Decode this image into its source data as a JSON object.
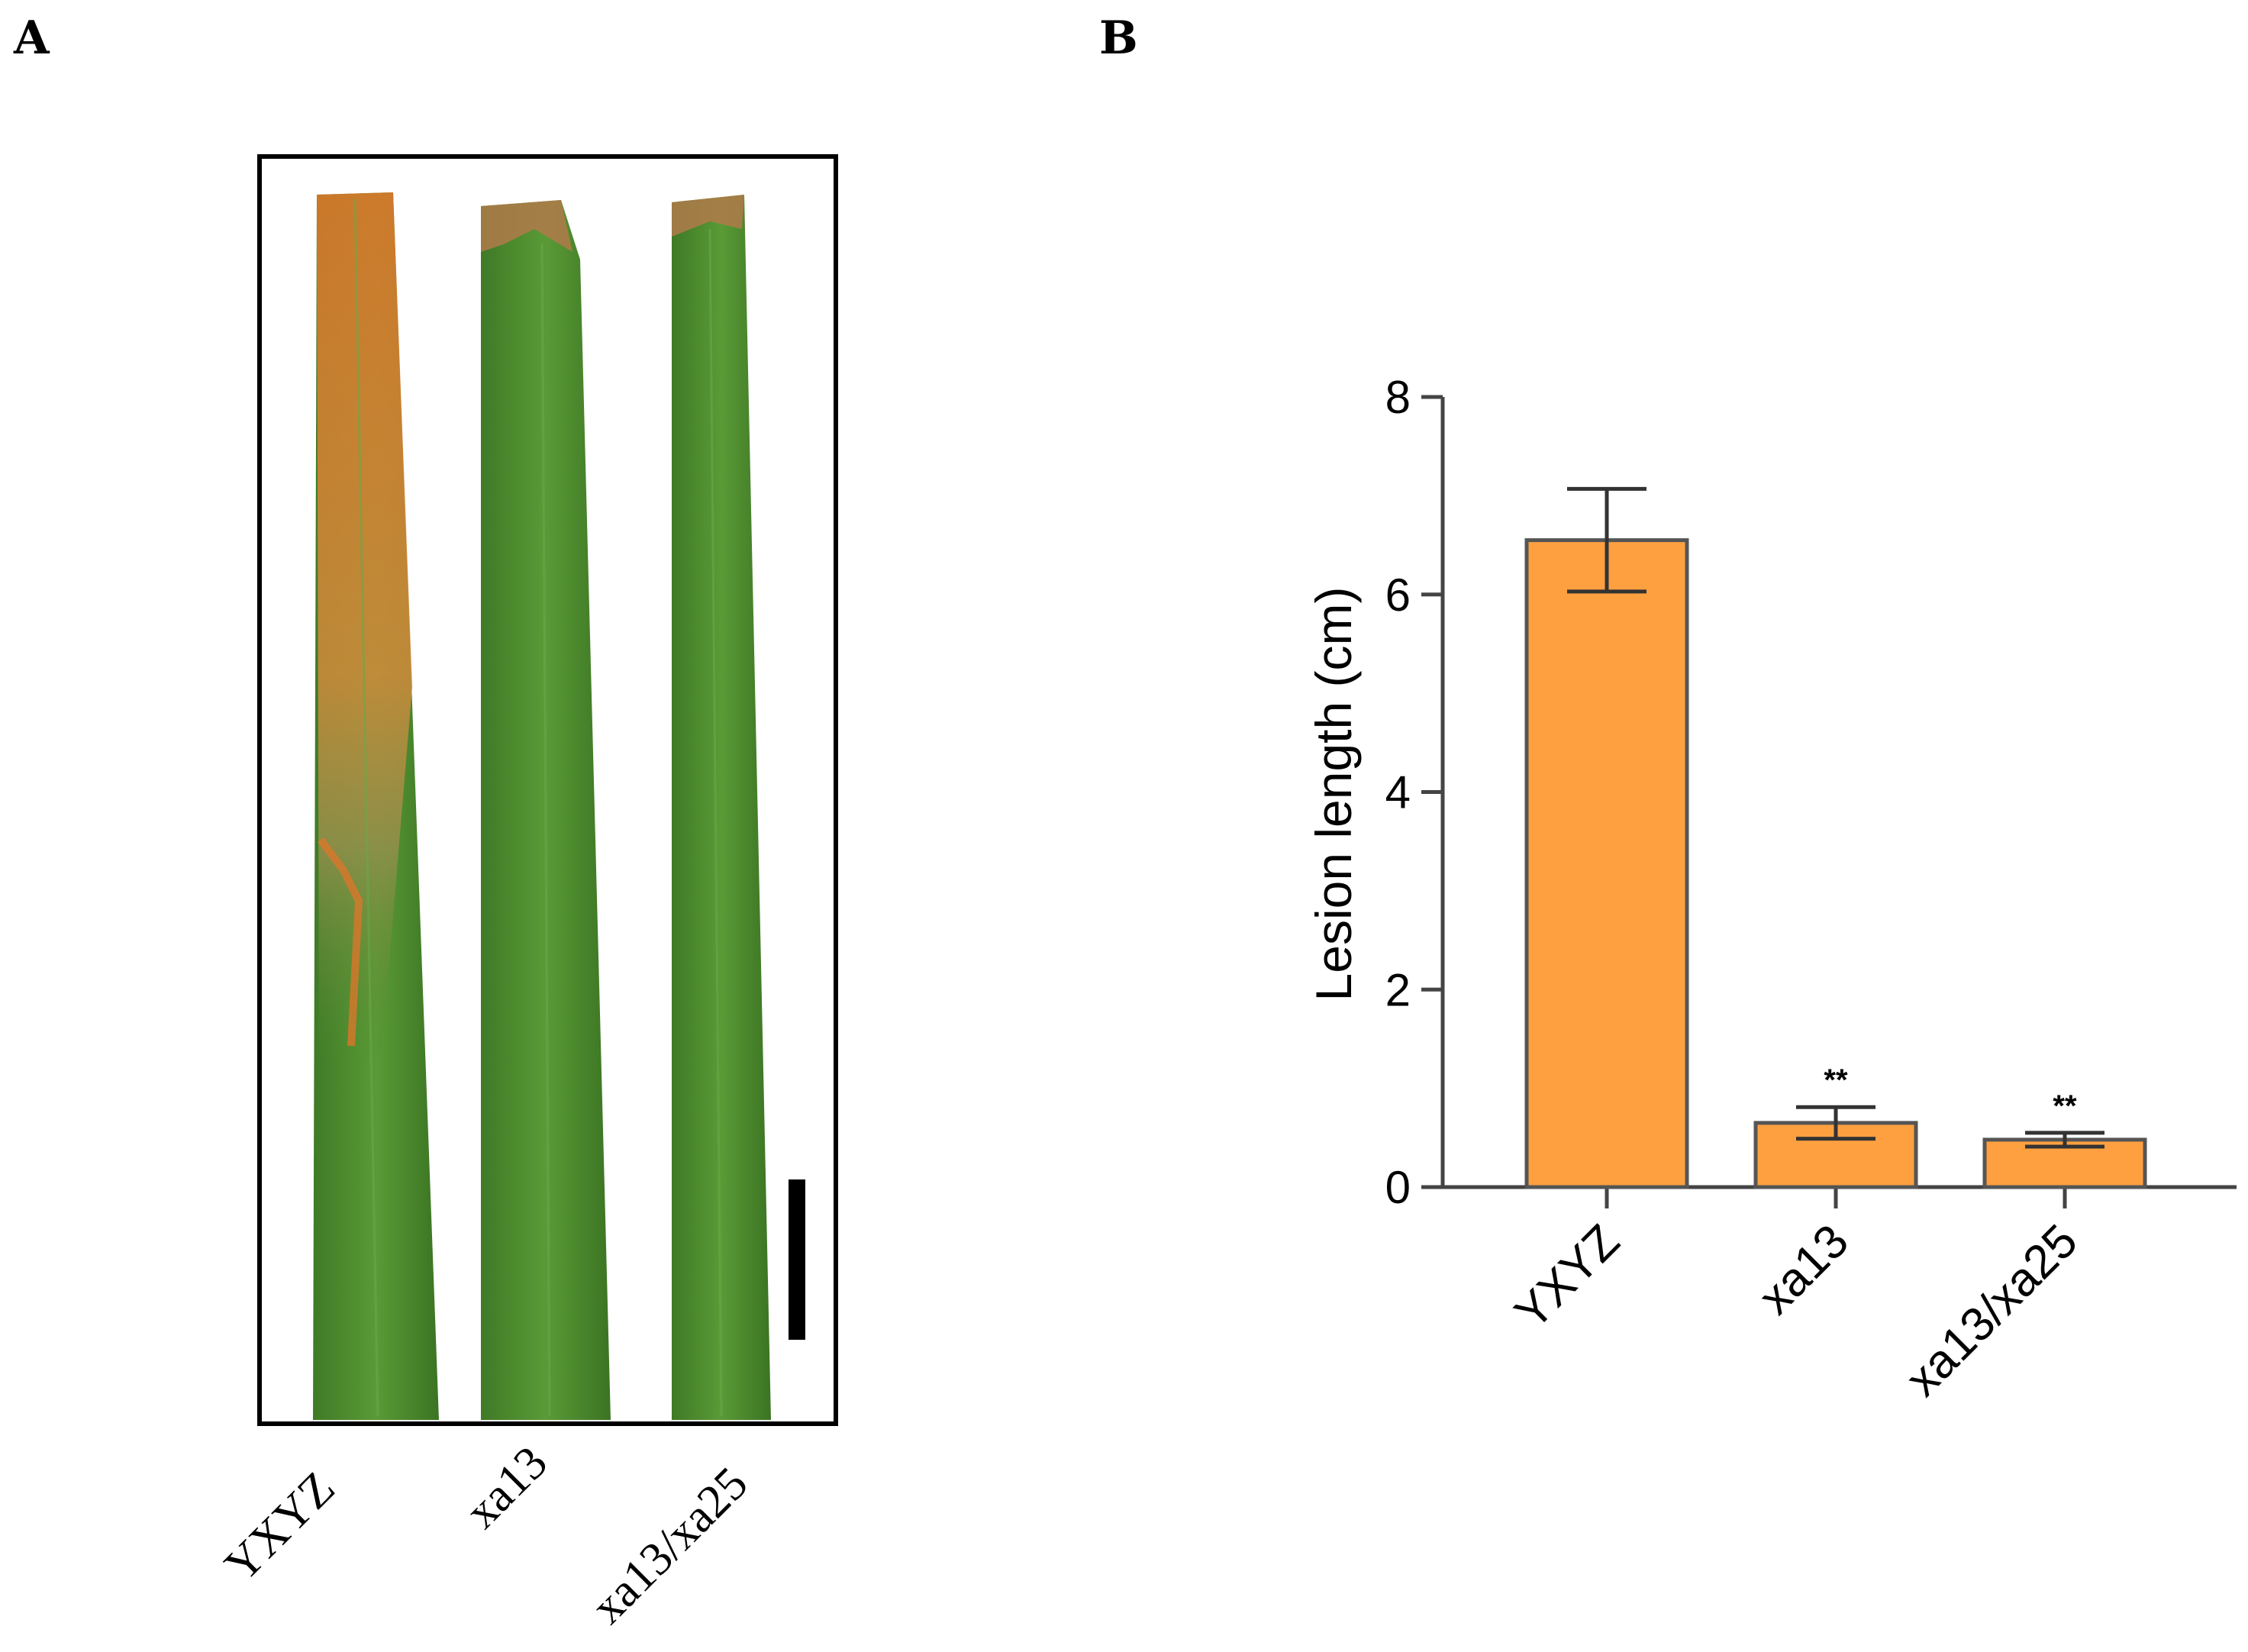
{
  "panels": {
    "a_label": "A",
    "b_label": "B"
  },
  "photo": {
    "leaf_labels": [
      "YXYZ",
      "xa13",
      "xa13/xa25"
    ],
    "leaf_color": "#4f8a2f",
    "lesion_color": "#e08a2e"
  },
  "chart_data": {
    "type": "bar",
    "categories": [
      "YXYZ",
      "xa13",
      "xa13/xa25"
    ],
    "values": [
      6.55,
      0.65,
      0.48
    ],
    "errors": [
      0.52,
      0.16,
      0.07
    ],
    "significance": [
      "",
      "**",
      "**"
    ],
    "ylabel": "Lesion length (cm)",
    "xlabel": "",
    "title": "",
    "ylim": [
      0,
      8
    ],
    "yticks": [
      0,
      2,
      4,
      6,
      8
    ],
    "bar_color": "#ffa040",
    "grid": false
  }
}
